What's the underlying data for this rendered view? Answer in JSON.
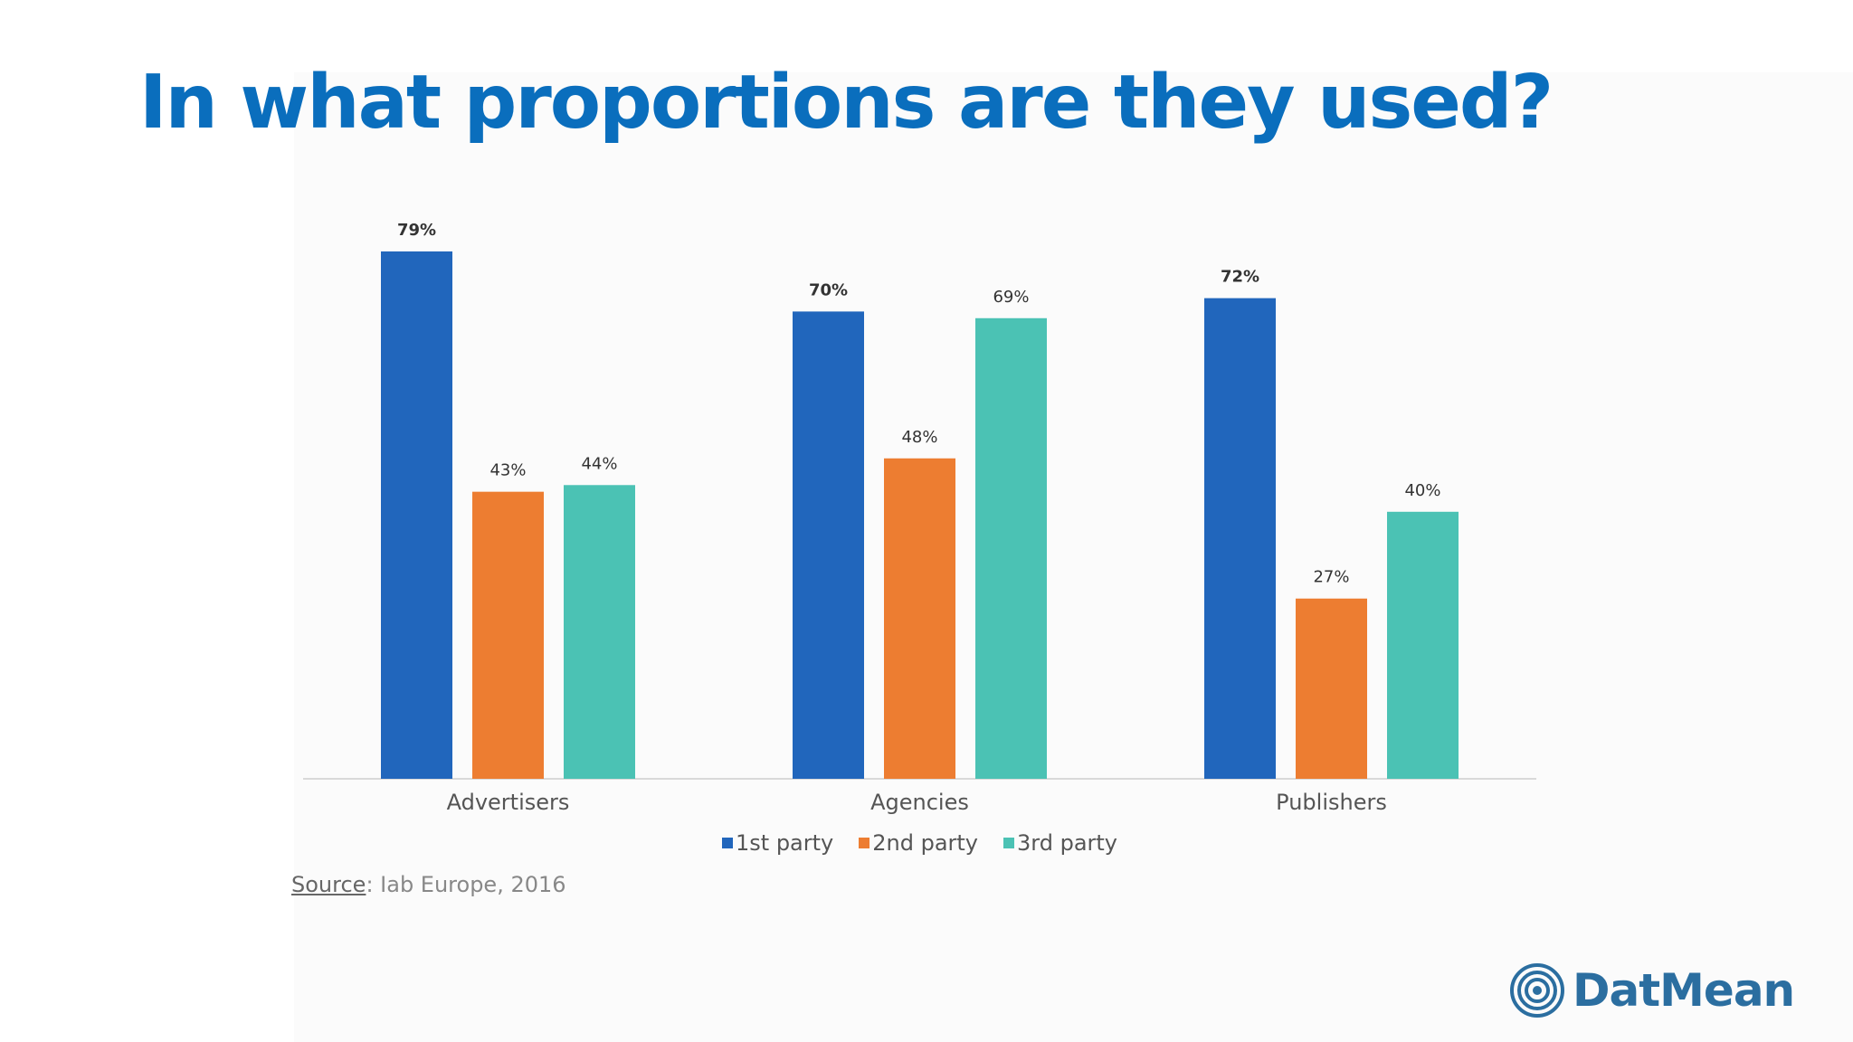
{
  "page": {
    "title": "In what proportions are they used?"
  },
  "chart_data": {
    "type": "bar",
    "categories": [
      "Advertisers",
      "Agencies",
      "Publishers"
    ],
    "series": [
      {
        "name": "1st party",
        "color": "#2166bc",
        "values": [
          79,
          70,
          72
        ],
        "labels": [
          "79%",
          "70%",
          "72%"
        ]
      },
      {
        "name": "2nd party",
        "color": "#ed7d31",
        "values": [
          43,
          48,
          27
        ],
        "labels": [
          "43%",
          "48%",
          "27%"
        ]
      },
      {
        "name": "3rd party",
        "color": "#4bc2b4",
        "values": [
          44,
          69,
          40
        ],
        "labels": [
          "44%",
          "69%",
          "40%"
        ]
      }
    ],
    "ylim": [
      0,
      100
    ],
    "grid": false,
    "legend_position": "bottom"
  },
  "source": {
    "label": "Source",
    "text": ": Iab Europe, 2016"
  },
  "logo": {
    "text": "DatMean",
    "icon": "concentric-circles-icon",
    "color": "#2b6ea0"
  }
}
